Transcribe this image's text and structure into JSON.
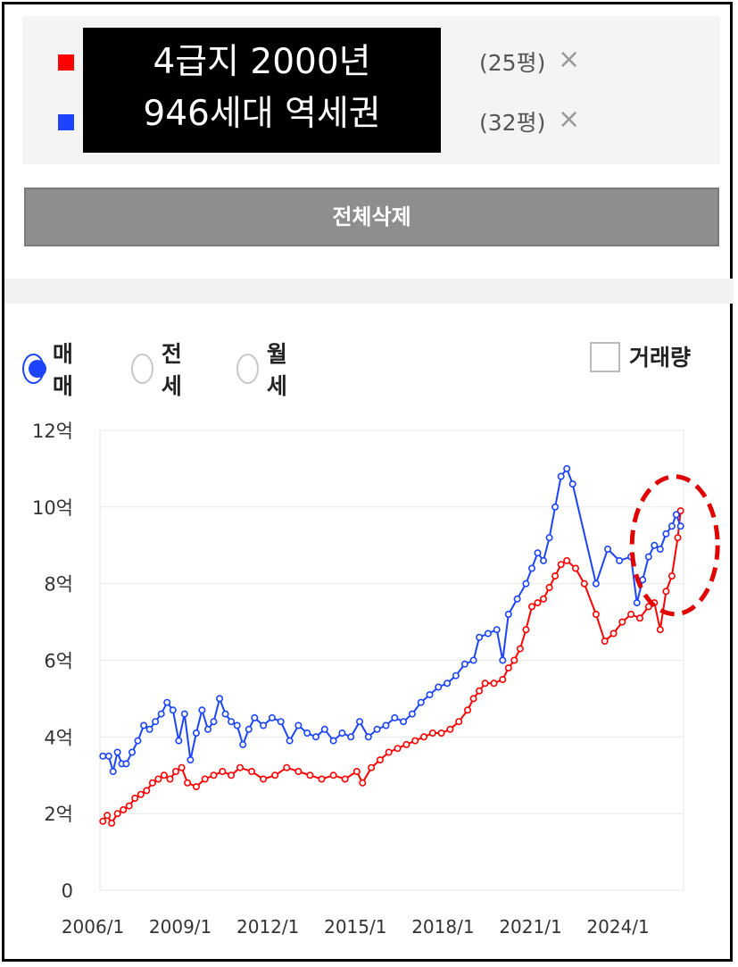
{
  "legend": {
    "items": [
      {
        "color": "#ff0000",
        "text": "(25평)",
        "remove": "×"
      },
      {
        "color": "#1c44ff",
        "text": "(32평)",
        "remove": "×"
      }
    ]
  },
  "overlay": {
    "line1": "4급지 2000년",
    "line2": "946세대 역세권"
  },
  "delete_all_label": "전체삭제",
  "radios": [
    {
      "label": "매매",
      "selected": true
    },
    {
      "label": "전세",
      "selected": false
    },
    {
      "label": "월세",
      "selected": false
    }
  ],
  "volume_checkbox_label": "거래량",
  "chart_data": {
    "type": "line",
    "y_tick_labels": [
      "0",
      "2억",
      "4억",
      "6억",
      "8억",
      "10억",
      "12억"
    ],
    "y_ticks": [
      0,
      2,
      4,
      6,
      8,
      10,
      12
    ],
    "x_tick_labels": [
      "2006/1",
      "2009/1",
      "2012/1",
      "2015/1",
      "2018/1",
      "2021/1",
      "2024/1"
    ],
    "x_ticks": [
      2006.0,
      2009.0,
      2012.0,
      2015.0,
      2018.0,
      2021.0,
      2024.0
    ],
    "xlim": [
      2006.0,
      2026.0
    ],
    "ylim": [
      0,
      12
    ],
    "grid": true,
    "series": [
      {
        "color": "#ff0000",
        "points": [
          [
            2006.1,
            1.8
          ],
          [
            2006.25,
            1.95
          ],
          [
            2006.4,
            1.75
          ],
          [
            2006.6,
            2.0
          ],
          [
            2006.8,
            2.1
          ],
          [
            2007.0,
            2.2
          ],
          [
            2007.2,
            2.4
          ],
          [
            2007.4,
            2.5
          ],
          [
            2007.6,
            2.6
          ],
          [
            2007.8,
            2.8
          ],
          [
            2008.0,
            2.9
          ],
          [
            2008.2,
            3.0
          ],
          [
            2008.4,
            2.9
          ],
          [
            2008.6,
            3.1
          ],
          [
            2008.8,
            3.2
          ],
          [
            2009.0,
            2.8
          ],
          [
            2009.3,
            2.7
          ],
          [
            2009.6,
            2.9
          ],
          [
            2009.9,
            3.0
          ],
          [
            2010.2,
            3.1
          ],
          [
            2010.5,
            3.0
          ],
          [
            2010.8,
            3.2
          ],
          [
            2011.2,
            3.1
          ],
          [
            2011.6,
            2.9
          ],
          [
            2012.0,
            3.0
          ],
          [
            2012.4,
            3.2
          ],
          [
            2012.8,
            3.1
          ],
          [
            2013.2,
            3.0
          ],
          [
            2013.6,
            2.9
          ],
          [
            2014.0,
            3.0
          ],
          [
            2014.4,
            2.9
          ],
          [
            2014.8,
            3.1
          ],
          [
            2015.0,
            2.8
          ],
          [
            2015.3,
            3.2
          ],
          [
            2015.6,
            3.4
          ],
          [
            2015.9,
            3.6
          ],
          [
            2016.2,
            3.7
          ],
          [
            2016.5,
            3.8
          ],
          [
            2016.8,
            3.9
          ],
          [
            2017.1,
            4.0
          ],
          [
            2017.4,
            4.1
          ],
          [
            2017.7,
            4.1
          ],
          [
            2018.0,
            4.2
          ],
          [
            2018.3,
            4.4
          ],
          [
            2018.6,
            4.7
          ],
          [
            2018.8,
            5.0
          ],
          [
            2019.0,
            5.2
          ],
          [
            2019.2,
            5.4
          ],
          [
            2019.5,
            5.4
          ],
          [
            2019.8,
            5.5
          ],
          [
            2020.0,
            5.8
          ],
          [
            2020.2,
            6.0
          ],
          [
            2020.4,
            6.3
          ],
          [
            2020.6,
            6.8
          ],
          [
            2020.8,
            7.4
          ],
          [
            2021.0,
            7.5
          ],
          [
            2021.2,
            7.6
          ],
          [
            2021.4,
            7.9
          ],
          [
            2021.6,
            8.2
          ],
          [
            2021.8,
            8.5
          ],
          [
            2022.0,
            8.6
          ],
          [
            2022.3,
            8.4
          ],
          [
            2022.6,
            8.0
          ],
          [
            2023.0,
            7.2
          ],
          [
            2023.3,
            6.5
          ],
          [
            2023.6,
            6.7
          ],
          [
            2023.9,
            7.0
          ],
          [
            2024.2,
            7.2
          ],
          [
            2024.5,
            7.1
          ],
          [
            2024.8,
            7.4
          ],
          [
            2025.0,
            7.5
          ],
          [
            2025.2,
            6.8
          ],
          [
            2025.4,
            7.8
          ],
          [
            2025.6,
            8.2
          ],
          [
            2025.8,
            9.2
          ],
          [
            2025.9,
            9.9
          ]
        ]
      },
      {
        "color": "#1c44ff",
        "points": [
          [
            2006.1,
            3.5
          ],
          [
            2006.3,
            3.5
          ],
          [
            2006.45,
            3.1
          ],
          [
            2006.6,
            3.6
          ],
          [
            2006.75,
            3.3
          ],
          [
            2006.9,
            3.3
          ],
          [
            2007.1,
            3.6
          ],
          [
            2007.3,
            3.9
          ],
          [
            2007.5,
            4.3
          ],
          [
            2007.7,
            4.2
          ],
          [
            2007.9,
            4.4
          ],
          [
            2008.1,
            4.6
          ],
          [
            2008.3,
            4.9
          ],
          [
            2008.5,
            4.7
          ],
          [
            2008.7,
            3.9
          ],
          [
            2008.9,
            4.6
          ],
          [
            2009.1,
            3.4
          ],
          [
            2009.3,
            4.1
          ],
          [
            2009.5,
            4.7
          ],
          [
            2009.7,
            4.2
          ],
          [
            2009.9,
            4.4
          ],
          [
            2010.1,
            5.0
          ],
          [
            2010.3,
            4.6
          ],
          [
            2010.5,
            4.4
          ],
          [
            2010.7,
            4.3
          ],
          [
            2010.9,
            3.8
          ],
          [
            2011.1,
            4.2
          ],
          [
            2011.3,
            4.5
          ],
          [
            2011.6,
            4.3
          ],
          [
            2011.9,
            4.5
          ],
          [
            2012.2,
            4.4
          ],
          [
            2012.5,
            3.9
          ],
          [
            2012.8,
            4.3
          ],
          [
            2013.1,
            4.1
          ],
          [
            2013.4,
            4.0
          ],
          [
            2013.7,
            4.2
          ],
          [
            2014.0,
            3.9
          ],
          [
            2014.3,
            4.1
          ],
          [
            2014.6,
            4.0
          ],
          [
            2014.9,
            4.4
          ],
          [
            2015.2,
            4.0
          ],
          [
            2015.5,
            4.2
          ],
          [
            2015.8,
            4.3
          ],
          [
            2016.1,
            4.5
          ],
          [
            2016.4,
            4.4
          ],
          [
            2016.7,
            4.6
          ],
          [
            2017.0,
            4.9
          ],
          [
            2017.3,
            5.1
          ],
          [
            2017.6,
            5.3
          ],
          [
            2017.9,
            5.4
          ],
          [
            2018.2,
            5.6
          ],
          [
            2018.5,
            5.9
          ],
          [
            2018.8,
            6.0
          ],
          [
            2019.0,
            6.6
          ],
          [
            2019.3,
            6.7
          ],
          [
            2019.6,
            6.8
          ],
          [
            2019.8,
            6.0
          ],
          [
            2020.0,
            7.2
          ],
          [
            2020.3,
            7.6
          ],
          [
            2020.6,
            8.0
          ],
          [
            2020.8,
            8.4
          ],
          [
            2021.0,
            8.8
          ],
          [
            2021.2,
            8.6
          ],
          [
            2021.4,
            9.2
          ],
          [
            2021.6,
            10.0
          ],
          [
            2021.8,
            10.8
          ],
          [
            2022.0,
            11.0
          ],
          [
            2022.2,
            10.6
          ],
          [
            2023.0,
            8.0
          ],
          [
            2023.4,
            8.9
          ],
          [
            2023.8,
            8.6
          ],
          [
            2024.2,
            8.7
          ],
          [
            2024.4,
            7.5
          ],
          [
            2024.6,
            8.1
          ],
          [
            2024.8,
            8.7
          ],
          [
            2025.0,
            9.0
          ],
          [
            2025.2,
            8.9
          ],
          [
            2025.4,
            9.3
          ],
          [
            2025.6,
            9.5
          ],
          [
            2025.75,
            9.8
          ],
          [
            2025.9,
            9.5
          ]
        ]
      }
    ],
    "highlight_color": "#e00000"
  }
}
